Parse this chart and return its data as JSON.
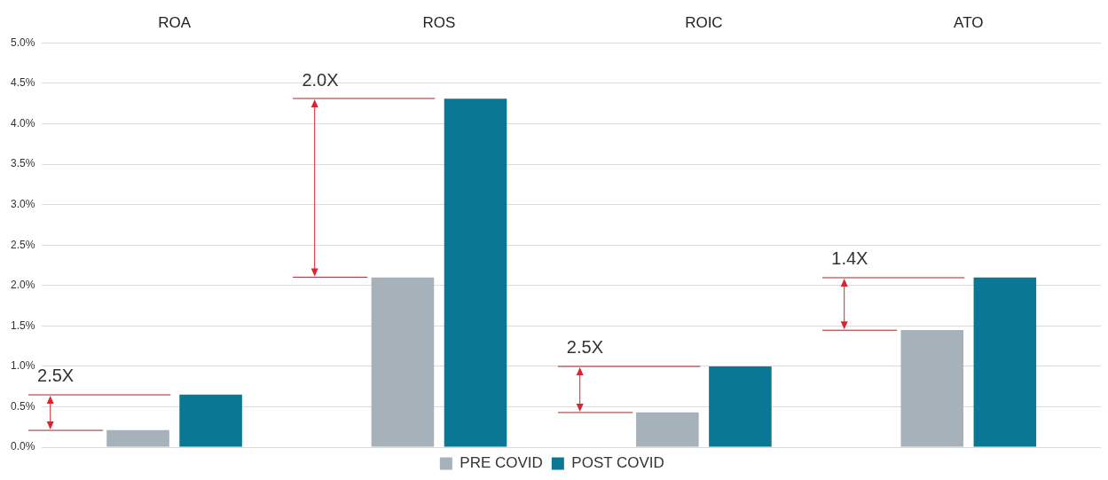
{
  "chart_data": {
    "type": "bar",
    "categories": [
      "ROA",
      "ROS",
      "ROIC",
      "ATO"
    ],
    "series": [
      {
        "name": "PRE COVID",
        "color": "#a7b1ba",
        "values": [
          0.21,
          2.1,
          0.43,
          1.45
        ]
      },
      {
        "name": "POST COVID",
        "color": "#0a7895",
        "values": [
          0.65,
          4.31,
          1.0,
          2.1
        ]
      }
    ],
    "ylim": [
      0,
      5
    ],
    "yticks": [
      {
        "value": 0,
        "label": "0.0%"
      },
      {
        "value": 0.5,
        "label": "0.5%"
      },
      {
        "value": 1,
        "label": "1.0%"
      },
      {
        "value": 1.5,
        "label": "1.5%"
      },
      {
        "value": 2,
        "label": "2.0%"
      },
      {
        "value": 2.5,
        "label": "2.5%"
      },
      {
        "value": 3,
        "label": "3.0%"
      },
      {
        "value": 3.5,
        "label": "3.5%"
      },
      {
        "value": 4,
        "label": "4.0%"
      },
      {
        "value": 4.5,
        "label": "4.5%"
      },
      {
        "value": 5,
        "label": "5.0%"
      }
    ],
    "annotations": [
      "2.5X",
      "2.0X",
      "2.5X",
      "1.4X"
    ],
    "grid": "y",
    "legend": "bottom"
  }
}
